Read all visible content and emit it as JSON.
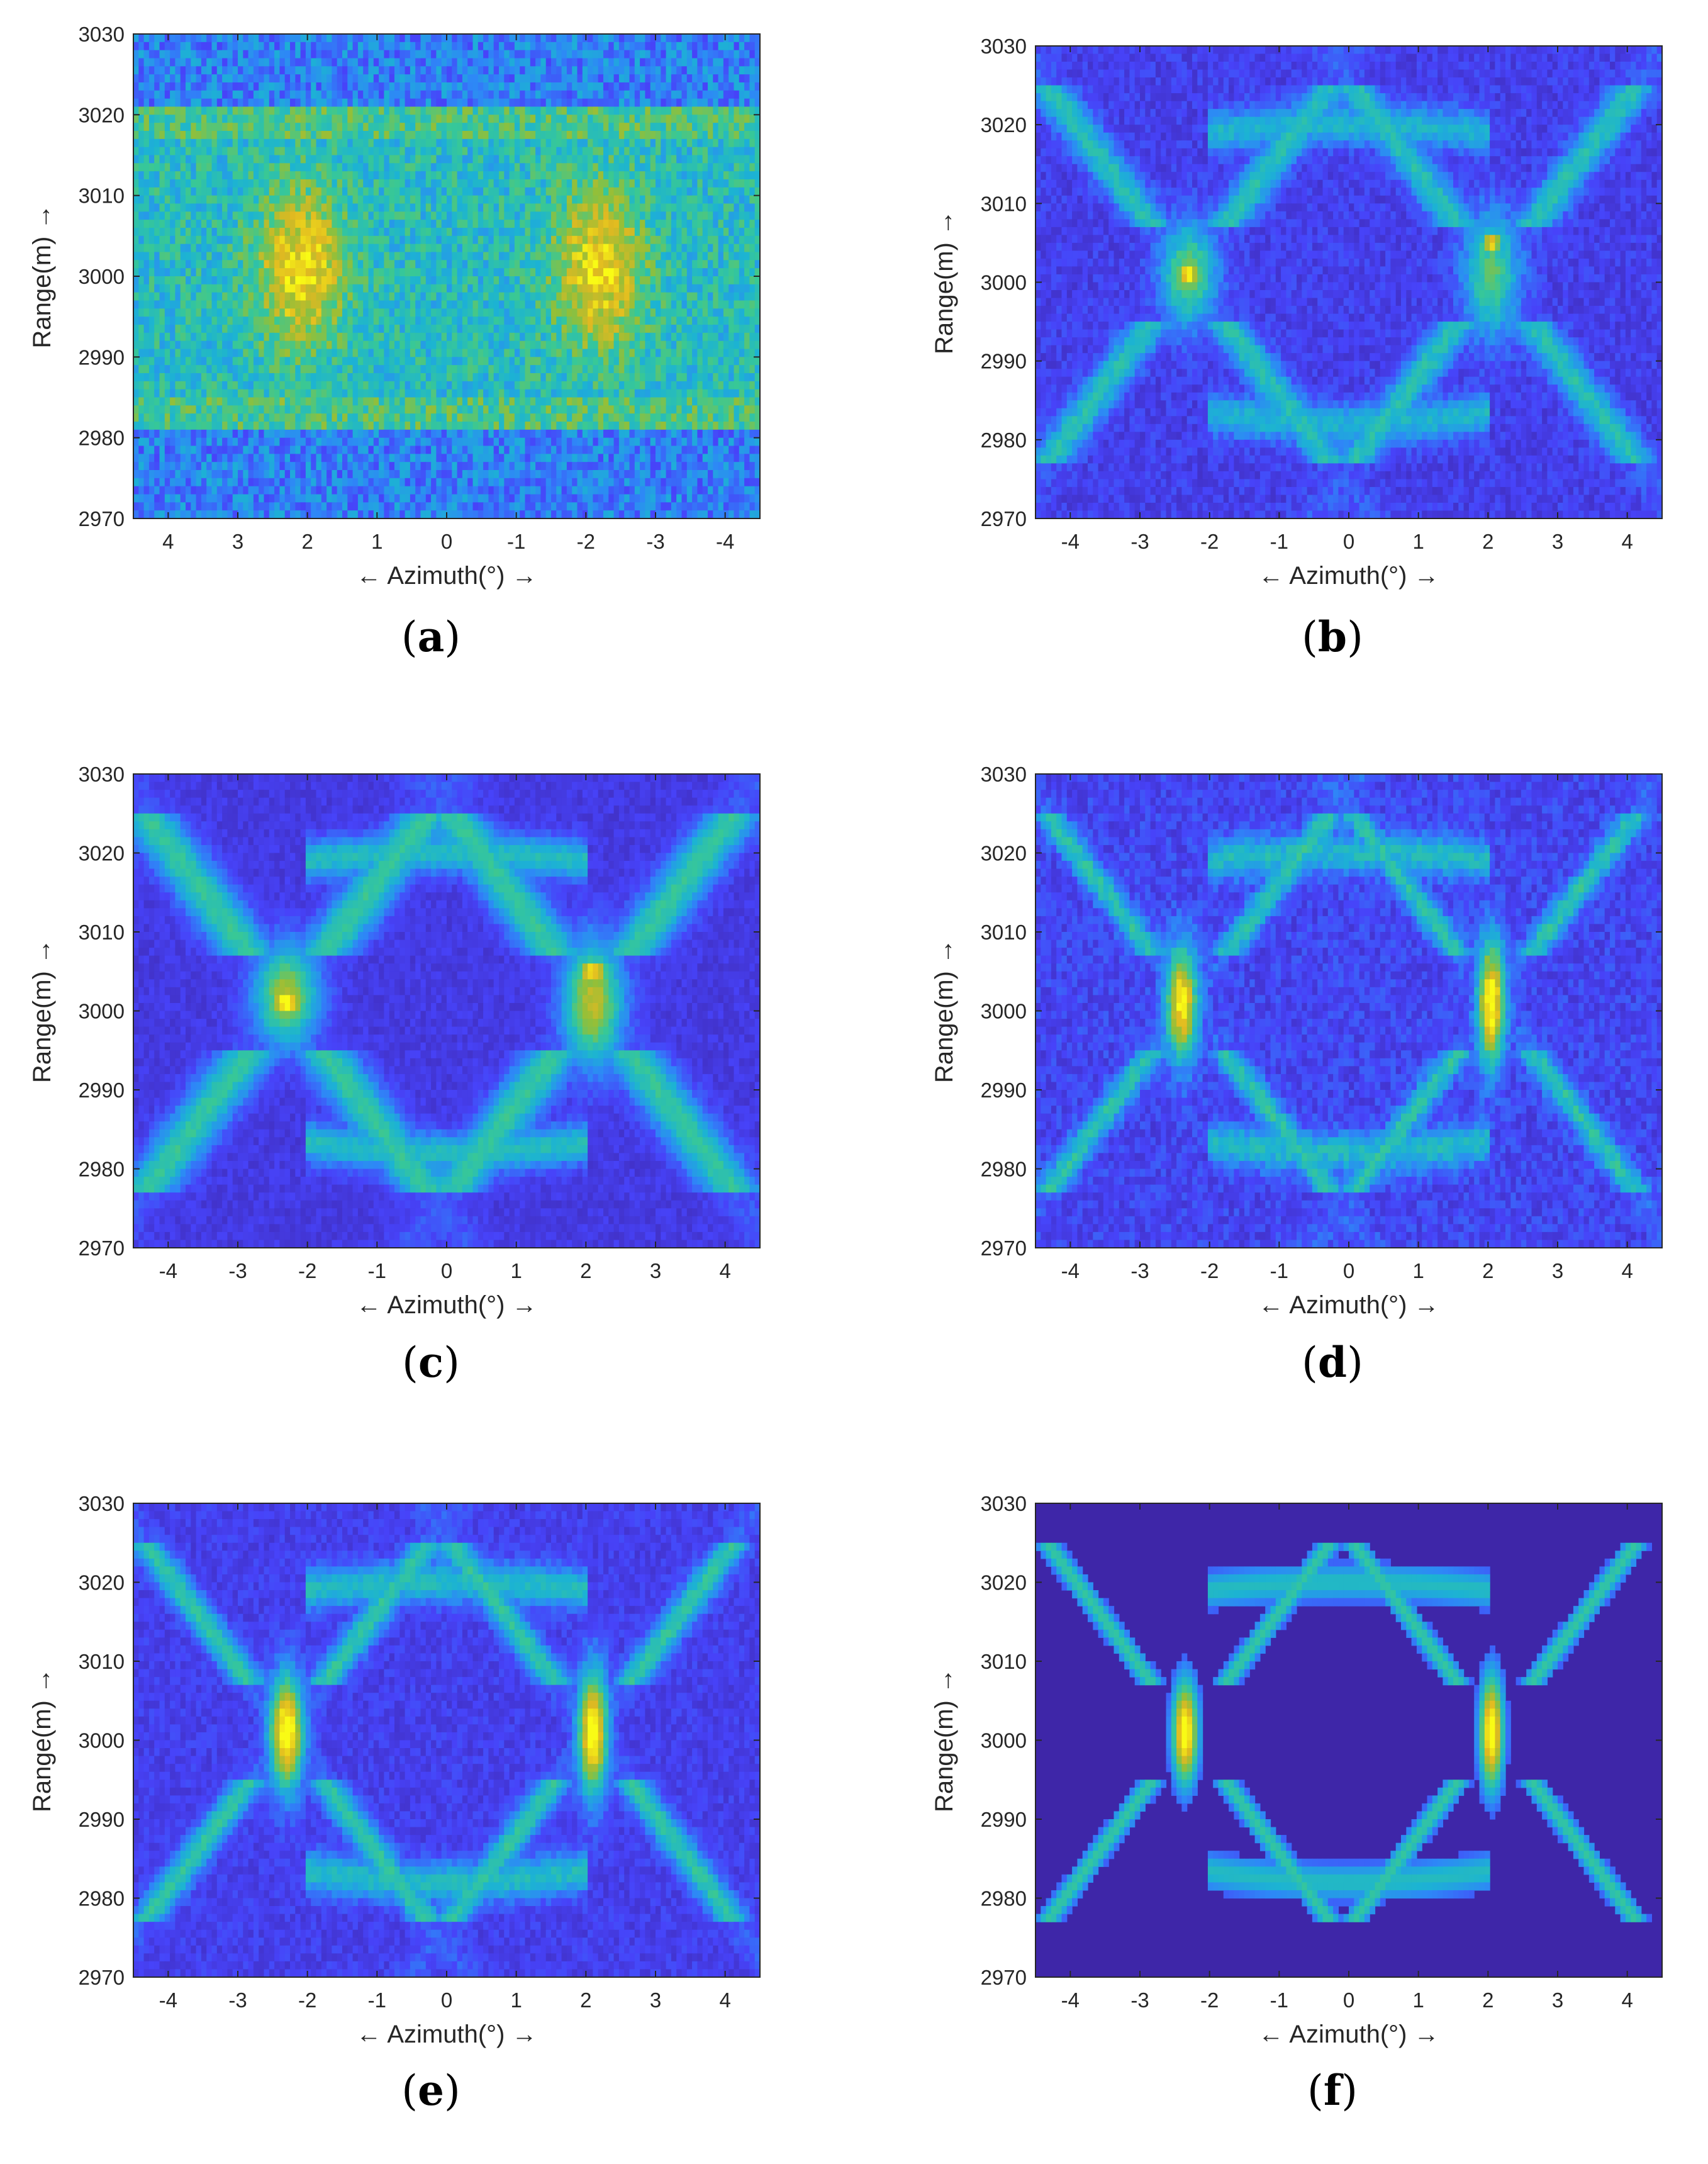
{
  "figure": {
    "colormap": [
      "#3e26a8",
      "#4743f9",
      "#2e87f7",
      "#1cb3d3",
      "#38c896",
      "#92bf39",
      "#e1b921",
      "#f9fb15"
    ],
    "background_color": "#3e26a8"
  },
  "chart_data": [
    {
      "panel": "a",
      "caption_letter": "a",
      "type": "heatmap",
      "title": "",
      "xlabel": "← Azimuth(°) →",
      "ylabel": "Range(m) →",
      "xlim": [
        4.5,
        -4.5
      ],
      "ylim": [
        2970,
        3030
      ],
      "x_reversed": true,
      "xticks": [
        4,
        3,
        2,
        1,
        0,
        -1,
        -2,
        -3,
        -4
      ],
      "xtick_labels": [
        "4",
        "3",
        "2",
        "1",
        "0",
        "-1",
        "-2",
        "-3",
        "-4"
      ],
      "yticks": [
        2970,
        2980,
        2990,
        3000,
        3010,
        3020,
        3030
      ],
      "ytick_labels": [
        "2970",
        "2980",
        "2990",
        "3000",
        "3010",
        "3020",
        "3030"
      ],
      "description": "raw noisy echo, bright band between 2981 and 3021 m",
      "peaks": [
        {
          "x": 2.1,
          "y": 3001,
          "v": 0.75
        },
        {
          "x": -2.2,
          "y": 3001,
          "v": 0.75
        }
      ]
    },
    {
      "panel": "b",
      "caption_letter": "b",
      "type": "heatmap",
      "title": "",
      "xlabel": "← Azimuth(°) →",
      "ylabel": "Range(m) →",
      "xlim": [
        -4.5,
        4.5
      ],
      "ylim": [
        2970,
        3030
      ],
      "x_reversed": false,
      "xticks": [
        -4,
        -3,
        -2,
        -1,
        0,
        1,
        2,
        3,
        4
      ],
      "xtick_labels": [
        "-4",
        "-3",
        "-2",
        "-1",
        "0",
        "1",
        "2",
        "3",
        "4"
      ],
      "yticks": [
        2970,
        2980,
        2990,
        3000,
        3010,
        3020,
        3030
      ],
      "ytick_labels": [
        "2970",
        "2980",
        "2990",
        "3000",
        "3010",
        "3020",
        "3030"
      ],
      "peaks": [
        {
          "x": -2.3,
          "y": 3001,
          "v": 0.95
        },
        {
          "x": 2.05,
          "y": 3005,
          "v": 0.85
        }
      ]
    },
    {
      "panel": "c",
      "caption_letter": "c",
      "type": "heatmap",
      "title": "",
      "xlabel": "← Azimuth(°) →",
      "ylabel": "Range(m) →",
      "xlim": [
        -4.5,
        4.5
      ],
      "ylim": [
        2970,
        3030
      ],
      "x_reversed": false,
      "xticks": [
        -4,
        -3,
        -2,
        -1,
        0,
        1,
        2,
        3,
        4
      ],
      "xtick_labels": [
        "-4",
        "-3",
        "-2",
        "-1",
        "0",
        "1",
        "2",
        "3",
        "4"
      ],
      "yticks": [
        2970,
        2980,
        2990,
        3000,
        3010,
        3020,
        3030
      ],
      "ytick_labels": [
        "2970",
        "2980",
        "2990",
        "3000",
        "3010",
        "3020",
        "3030"
      ],
      "peaks": [
        {
          "x": -2.3,
          "y": 3001,
          "v": 1.0
        },
        {
          "x": 2.1,
          "y": 3005,
          "v": 0.9
        }
      ]
    },
    {
      "panel": "d",
      "caption_letter": "d",
      "type": "heatmap",
      "title": "",
      "xlabel": "← Azimuth(°) →",
      "ylabel": "Range(m) →",
      "xlim": [
        -4.5,
        4.5
      ],
      "ylim": [
        2970,
        3030
      ],
      "x_reversed": false,
      "xticks": [
        -4,
        -3,
        -2,
        -1,
        0,
        1,
        2,
        3,
        4
      ],
      "xtick_labels": [
        "-4",
        "-3",
        "-2",
        "-1",
        "0",
        "1",
        "2",
        "3",
        "4"
      ],
      "yticks": [
        2970,
        2980,
        2990,
        3000,
        3010,
        3020,
        3030
      ],
      "ytick_labels": [
        "2970",
        "2980",
        "2990",
        "3000",
        "3010",
        "3020",
        "3030"
      ],
      "peaks": [
        {
          "x": -2.4,
          "y": 3001,
          "v": 0.95
        },
        {
          "x": 2.05,
          "y": 3004,
          "v": 0.95
        }
      ]
    },
    {
      "panel": "e",
      "caption_letter": "e",
      "type": "heatmap",
      "title": "",
      "xlabel": "← Azimuth(°) →",
      "ylabel": "Range(m) →",
      "xlim": [
        -4.5,
        4.5
      ],
      "ylim": [
        2970,
        3030
      ],
      "x_reversed": false,
      "xticks": [
        -4,
        -3,
        -2,
        -1,
        0,
        1,
        2,
        3,
        4
      ],
      "xtick_labels": [
        "-4",
        "-3",
        "-2",
        "-1",
        "0",
        "1",
        "2",
        "3",
        "4"
      ],
      "yticks": [
        2970,
        2980,
        2990,
        3000,
        3010,
        3020,
        3030
      ],
      "ytick_labels": [
        "2970",
        "2980",
        "2990",
        "3000",
        "3010",
        "3020",
        "3030"
      ],
      "peaks": [
        {
          "x": -2.3,
          "y": 3001,
          "v": 1.0
        },
        {
          "x": 2.1,
          "y": 3005,
          "v": 0.95
        }
      ]
    },
    {
      "panel": "f",
      "caption_letter": "f",
      "type": "heatmap",
      "title": "",
      "xlabel": "← Azimuth(°) →",
      "ylabel": "Range(m) →",
      "xlim": [
        -4.5,
        4.5
      ],
      "ylim": [
        2970,
        3030
      ],
      "x_reversed": false,
      "xticks": [
        -4,
        -3,
        -2,
        -1,
        0,
        1,
        2,
        3,
        4
      ],
      "xtick_labels": [
        "-4",
        "-3",
        "-2",
        "-1",
        "0",
        "1",
        "2",
        "3",
        "4"
      ],
      "yticks": [
        2970,
        2980,
        2990,
        3000,
        3010,
        3020,
        3030
      ],
      "ytick_labels": [
        "2970",
        "2980",
        "2990",
        "3000",
        "3010",
        "3020",
        "3030"
      ],
      "peaks": [
        {
          "x": -2.35,
          "y": 3001,
          "v": 1.0
        },
        {
          "x": 2.05,
          "y": 3004,
          "v": 1.0
        }
      ]
    }
  ]
}
